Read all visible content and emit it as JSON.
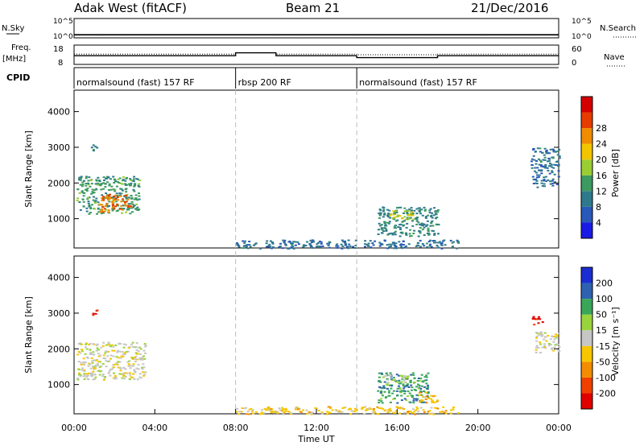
{
  "header": {
    "station": "Adak West (fitACF)",
    "beam": "Beam 21",
    "date": "21/Dec/2016"
  },
  "noise_panel": {
    "left_label": "N.Sky",
    "right_label": "N.Search",
    "tick_top": "10^5",
    "tick_bottom": "10^0",
    "ylim_log10": [
      0,
      5
    ]
  },
  "freq_panel": {
    "left_label_1": "Freq.",
    "left_label_2": "[MHz]",
    "right_label": "Nave",
    "left_ticks": [
      "18",
      "8"
    ],
    "right_ticks": [
      "60",
      "0"
    ],
    "freq_ylim": [
      8,
      18
    ],
    "nave_ylim": [
      0,
      60
    ]
  },
  "cpid": {
    "label": "CPID",
    "segments": [
      {
        "text": "normalsound (fast) 157 RF",
        "start_h": 0
      },
      {
        "text": "rbsp 200 RF",
        "start_h": 8
      },
      {
        "text": "normalsound (fast) 157 RF",
        "start_h": 14
      }
    ]
  },
  "power_panel": {
    "ylabel": "Slant Range [km]",
    "cbar_label": "Power [dB]",
    "cbar_ticks": [
      "4",
      "8",
      "12",
      "16",
      "20",
      "24",
      "28"
    ]
  },
  "velocity_panel": {
    "ylabel": "Slant Range [km]",
    "cbar_label": "Velocity [m s⁻¹]",
    "cbar_ticks": [
      "-200",
      "-100",
      "-50",
      "-15",
      "15",
      "50",
      "100",
      "200"
    ]
  },
  "xaxis": {
    "label": "Time UT",
    "ticks": [
      "00:00",
      "04:00",
      "08:00",
      "12:00",
      "16:00",
      "20:00",
      "00:00"
    ]
  },
  "chart_data": [
    {
      "type": "line",
      "title": "",
      "xlabel": "Time UT",
      "xlim": [
        0,
        24
      ],
      "series": [
        {
          "name": "N.Sky",
          "x": [
            0,
            24
          ],
          "y_log10": [
            0.8,
            0.8
          ]
        },
        {
          "name": "N.Search",
          "x": [
            0,
            24
          ],
          "y_log10": [
            0.7,
            0.7
          ]
        }
      ]
    },
    {
      "type": "line",
      "xlim": [
        0,
        24
      ],
      "series": [
        {
          "name": "Freq.",
          "x": [
            0,
            8,
            8,
            10,
            10,
            14,
            14,
            18,
            18,
            24
          ],
          "y": [
            12.5,
            12.5,
            14,
            14,
            12.5,
            12.5,
            11.5,
            11.5,
            12.5,
            12.5
          ]
        },
        {
          "name": "Nave",
          "x": [
            0,
            8,
            8,
            10,
            10,
            14,
            14,
            18,
            18,
            24
          ],
          "y": [
            32,
            32,
            36,
            36,
            32,
            32,
            30,
            30,
            32,
            32
          ]
        }
      ]
    },
    {
      "type": "heatmap",
      "xlabel": "Time UT",
      "ylabel": "Slant Range [km]",
      "xlim": [
        0,
        24
      ],
      "ylim": [
        180,
        4600
      ],
      "colorbar": {
        "label": "Power [dB]",
        "range": [
          0,
          32
        ]
      },
      "regions": [
        {
          "t": [
            0.1,
            3.2
          ],
          "r": [
            1150,
            2200
          ],
          "value": 12
        },
        {
          "t": [
            0.8,
            1.1
          ],
          "r": [
            2900,
            3150
          ],
          "value": 10
        },
        {
          "t": [
            1.2,
            2.8
          ],
          "r": [
            1200,
            1700
          ],
          "value": 24
        },
        {
          "t": [
            15.0,
            18.0
          ],
          "r": [
            500,
            1350
          ],
          "value": 10
        },
        {
          "t": [
            15.5,
            16.8
          ],
          "r": [
            1000,
            1250
          ],
          "value": 18
        },
        {
          "t": [
            8.0,
            19.0
          ],
          "r": [
            180,
            420
          ],
          "value": 8
        },
        {
          "t": [
            22.6,
            24.0
          ],
          "r": [
            1900,
            3000
          ],
          "value": 8
        }
      ]
    },
    {
      "type": "heatmap",
      "xlabel": "Time UT",
      "ylabel": "Slant Range [km]",
      "xlim": [
        0,
        24
      ],
      "ylim": [
        180,
        4600
      ],
      "colorbar": {
        "label": "Velocity [m s⁻¹]",
        "range": [
          -250,
          250
        ]
      },
      "regions": [
        {
          "t": [
            0.1,
            3.5
          ],
          "r": [
            1150,
            2200
          ],
          "value": 0
        },
        {
          "t": [
            0.8,
            1.1
          ],
          "r": [
            2950,
            3150
          ],
          "value": -200
        },
        {
          "t": [
            15.0,
            17.5
          ],
          "r": [
            500,
            1350
          ],
          "value": 120
        },
        {
          "t": [
            15.2,
            16.5
          ],
          "r": [
            1000,
            1300
          ],
          "value": 40
        },
        {
          "t": [
            17.0,
            18.0
          ],
          "r": [
            500,
            800
          ],
          "value": -60
        },
        {
          "t": [
            8.0,
            19.0
          ],
          "r": [
            180,
            400
          ],
          "value": -50
        },
        {
          "t": [
            22.6,
            23.2
          ],
          "r": [
            2700,
            2950
          ],
          "value": -200
        },
        {
          "t": [
            22.8,
            24.0
          ],
          "r": [
            1900,
            2500
          ],
          "value": 0
        }
      ]
    }
  ]
}
